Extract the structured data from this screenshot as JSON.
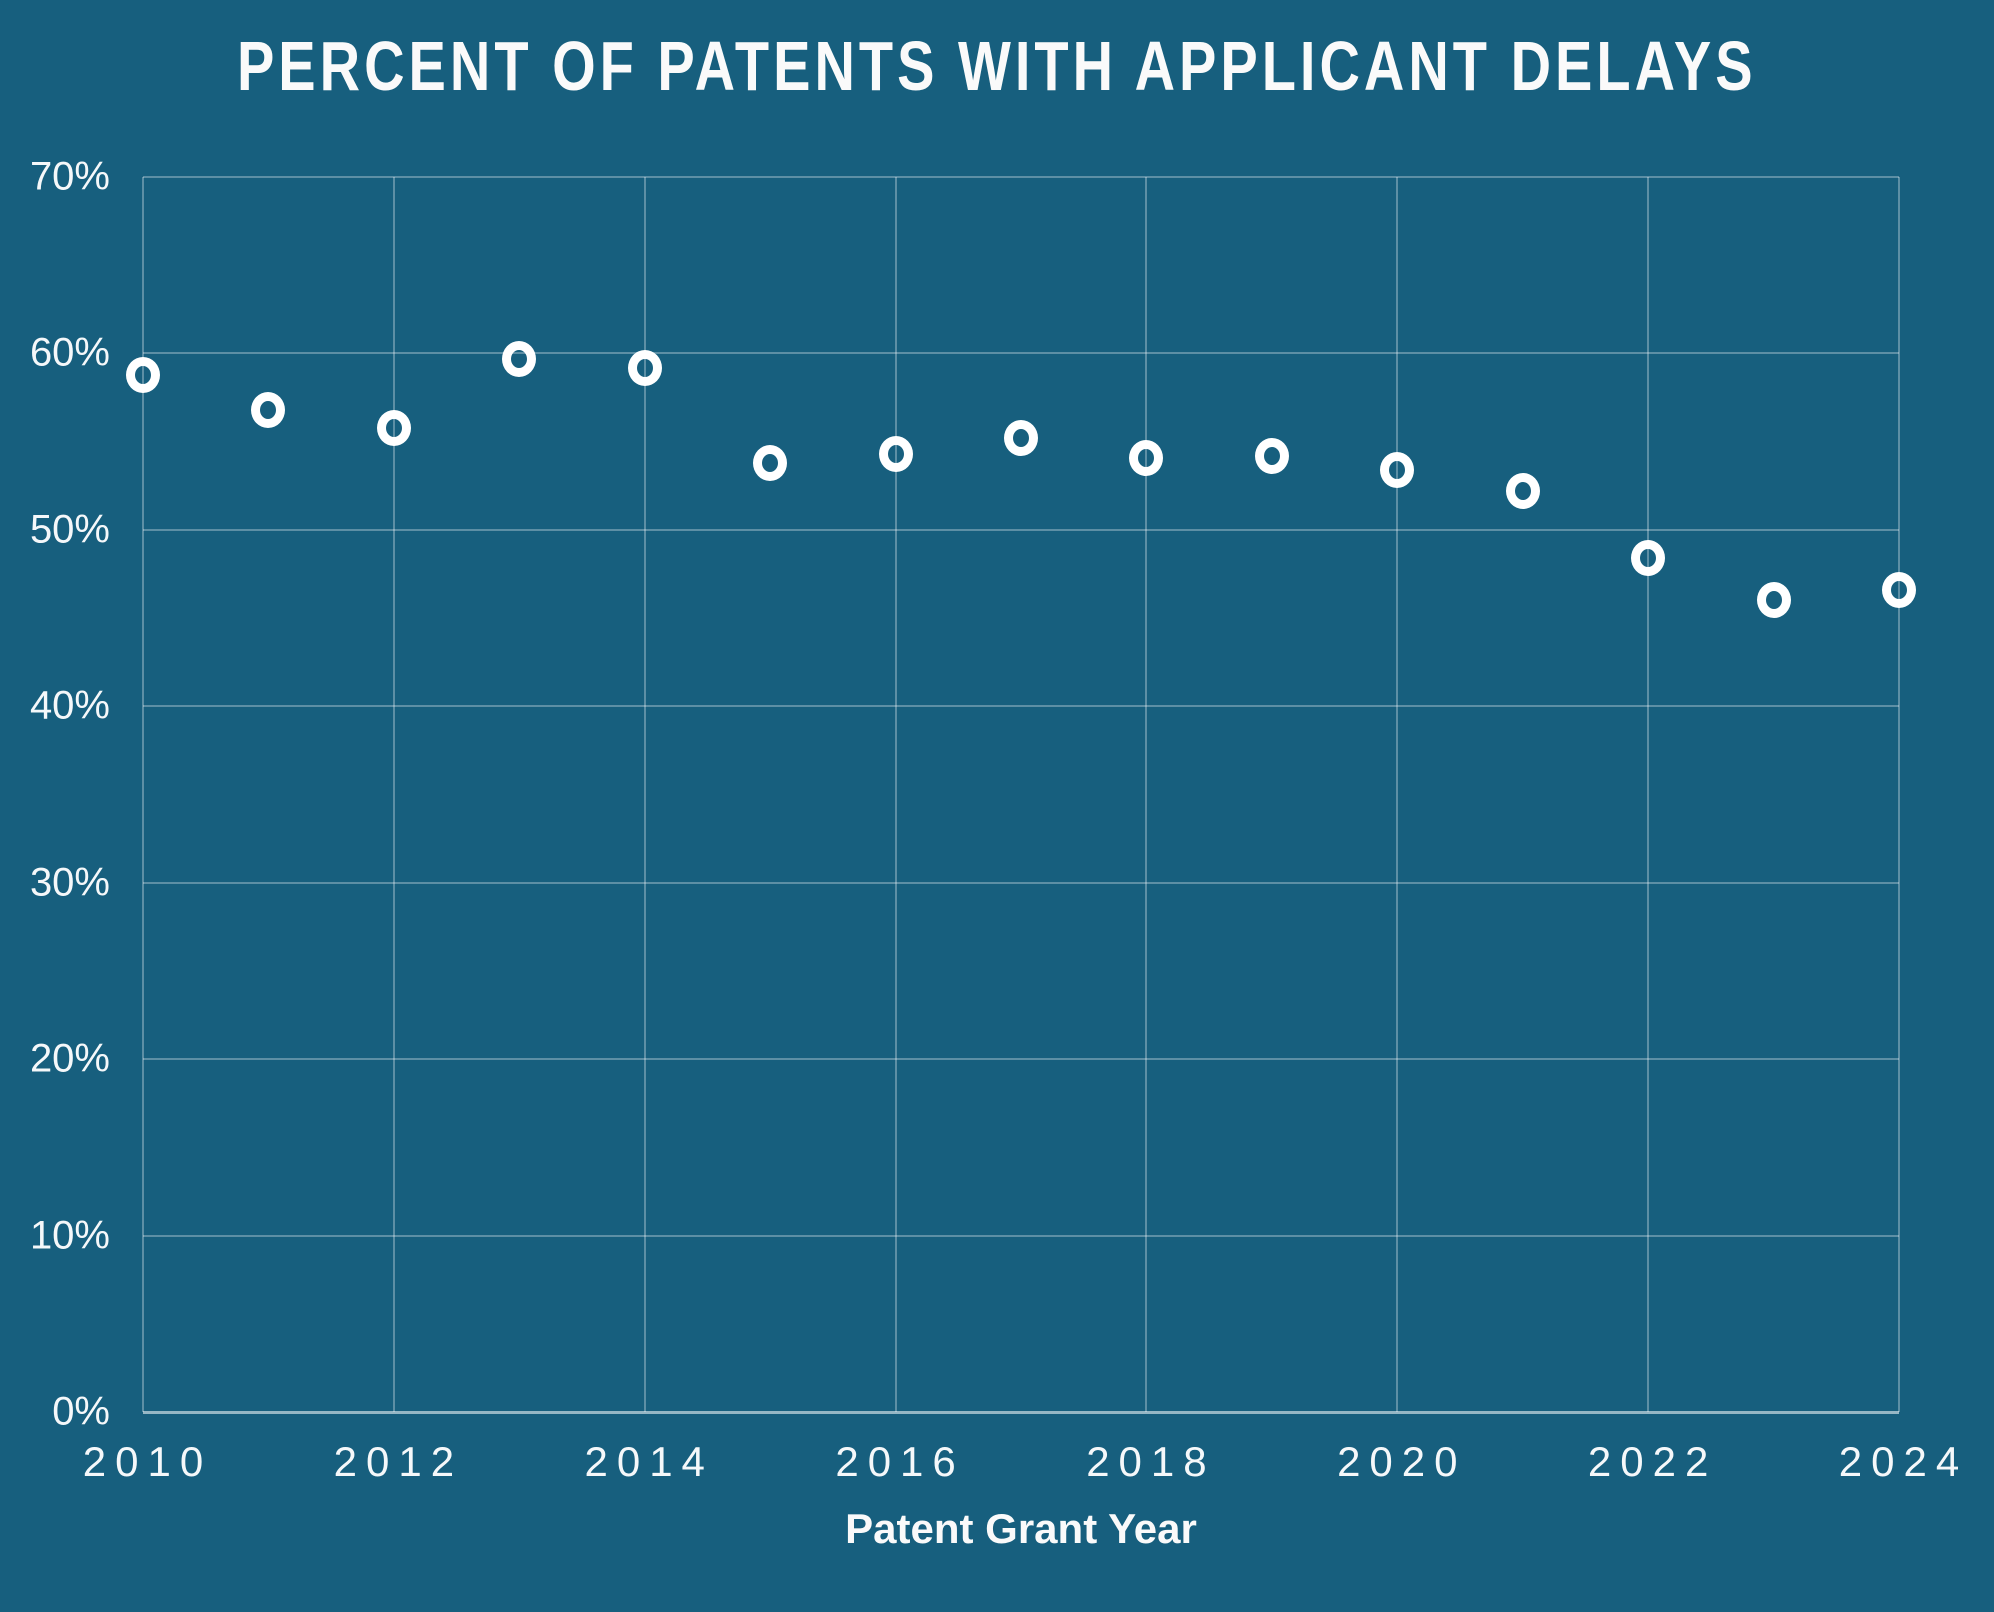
{
  "colors": {
    "background": "#175F7E",
    "gridline": "rgba(255,255,255,0.30)",
    "axis_line": "rgba(255,255,255,0.55)",
    "marker": "#ffffff",
    "text": "#fafafa"
  },
  "chart_data": {
    "type": "scatter",
    "title": "PERCENT OF PATENTS WITH APPLICANT DELAYS",
    "xlabel": "Patent Grant Year",
    "ylabel": "",
    "x": [
      2010,
      2011,
      2012,
      2013,
      2014,
      2015,
      2016,
      2017,
      2018,
      2019,
      2020,
      2021,
      2022,
      2023,
      2024
    ],
    "values": [
      58.8,
      56.8,
      55.8,
      59.7,
      59.2,
      53.8,
      54.3,
      55.2,
      54.1,
      54.2,
      53.4,
      52.2,
      48.4,
      46.0,
      46.6
    ],
    "xlim": [
      2010,
      2024
    ],
    "ylim": [
      0,
      70
    ],
    "grid": true,
    "legend": false,
    "marker_style": "open-circle",
    "x_ticks": [
      {
        "label": "2010",
        "value": 2010
      },
      {
        "label": "2012",
        "value": 2012
      },
      {
        "label": "2014",
        "value": 2014
      },
      {
        "label": "2016",
        "value": 2016
      },
      {
        "label": "2018",
        "value": 2018
      },
      {
        "label": "2020",
        "value": 2020
      },
      {
        "label": "2022",
        "value": 2022
      },
      {
        "label": "2024",
        "value": 2024
      }
    ],
    "y_ticks": [
      {
        "label": "0%",
        "value": 0
      },
      {
        "label": "10%",
        "value": 10
      },
      {
        "label": "20%",
        "value": 20
      },
      {
        "label": "30%",
        "value": 30
      },
      {
        "label": "40%",
        "value": 40
      },
      {
        "label": "50%",
        "value": 50
      },
      {
        "label": "60%",
        "value": 60
      },
      {
        "label": "70%",
        "value": 70
      }
    ]
  }
}
